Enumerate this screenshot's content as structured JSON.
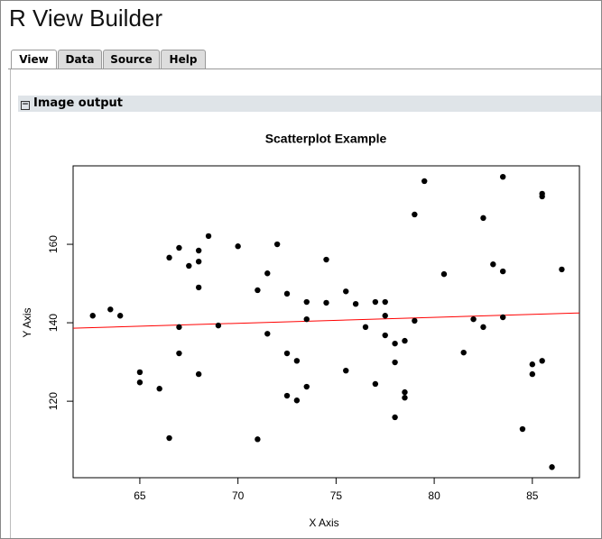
{
  "header": {
    "title": "R View Builder"
  },
  "tabs": [
    "View",
    "Data",
    "Source",
    "Help"
  ],
  "section": {
    "title": "Image output"
  },
  "chart_data": {
    "type": "scatter",
    "title": "Scatterplot Example",
    "x_label": "X Axis",
    "y_label": "Y Axis",
    "x": [
      62.6,
      63.5,
      64.0,
      65.0,
      65.0,
      66.0,
      66.5,
      66.5,
      67.0,
      67.0,
      67.0,
      67.5,
      68.0,
      68.0,
      68.0,
      68.0,
      68.5,
      69.0,
      70.0,
      71.0,
      71.0,
      71.5,
      71.5,
      72.0,
      72.5,
      72.5,
      72.5,
      73.0,
      73.0,
      73.5,
      73.5,
      73.5,
      74.5,
      74.5,
      75.5,
      75.5,
      76.0,
      76.5,
      77.0,
      77.0,
      77.5,
      77.5,
      77.5,
      78.0,
      78.0,
      78.0,
      78.5,
      78.5,
      78.5,
      79.0,
      79.0,
      79.5,
      80.5,
      81.5,
      82.0,
      82.5,
      82.5,
      83.0,
      83.5,
      83.5,
      83.5,
      84.5,
      85.0,
      85.0,
      85.5,
      85.5,
      85.5,
      86.0,
      86.5
    ],
    "y": [
      141.8,
      143.4,
      141.8,
      127.4,
      124.8,
      123.2,
      156.6,
      110.6,
      159.1,
      138.9,
      132.2,
      154.5,
      158.4,
      155.6,
      149.0,
      126.9,
      162.1,
      139.3,
      159.5,
      110.3,
      148.3,
      152.6,
      137.2,
      160.0,
      147.4,
      132.2,
      121.4,
      130.3,
      120.2,
      145.3,
      140.9,
      123.7,
      156.1,
      145.1,
      148.0,
      127.8,
      144.8,
      138.9,
      145.3,
      124.4,
      145.3,
      141.8,
      136.8,
      134.7,
      129.9,
      115.9,
      135.4,
      122.3,
      120.9,
      140.5,
      167.6,
      176.1,
      152.4,
      132.4,
      140.9,
      138.9,
      166.7,
      154.9,
      153.1,
      141.4,
      177.2,
      112.9,
      129.4,
      126.9,
      172.9,
      172.2,
      130.3,
      103.2,
      153.6
    ],
    "color": "#000000",
    "fit_line": {
      "x": [
        61.6,
        87.4
      ],
      "y": [
        138.6,
        142.5
      ],
      "color": "#ff0000"
    },
    "xlim": [
      61.6,
      87.4
    ],
    "ylim": [
      100.5,
      180
    ],
    "xticks": [
      65,
      70,
      75,
      80,
      85
    ],
    "yticks": [
      120,
      140,
      160
    ]
  }
}
